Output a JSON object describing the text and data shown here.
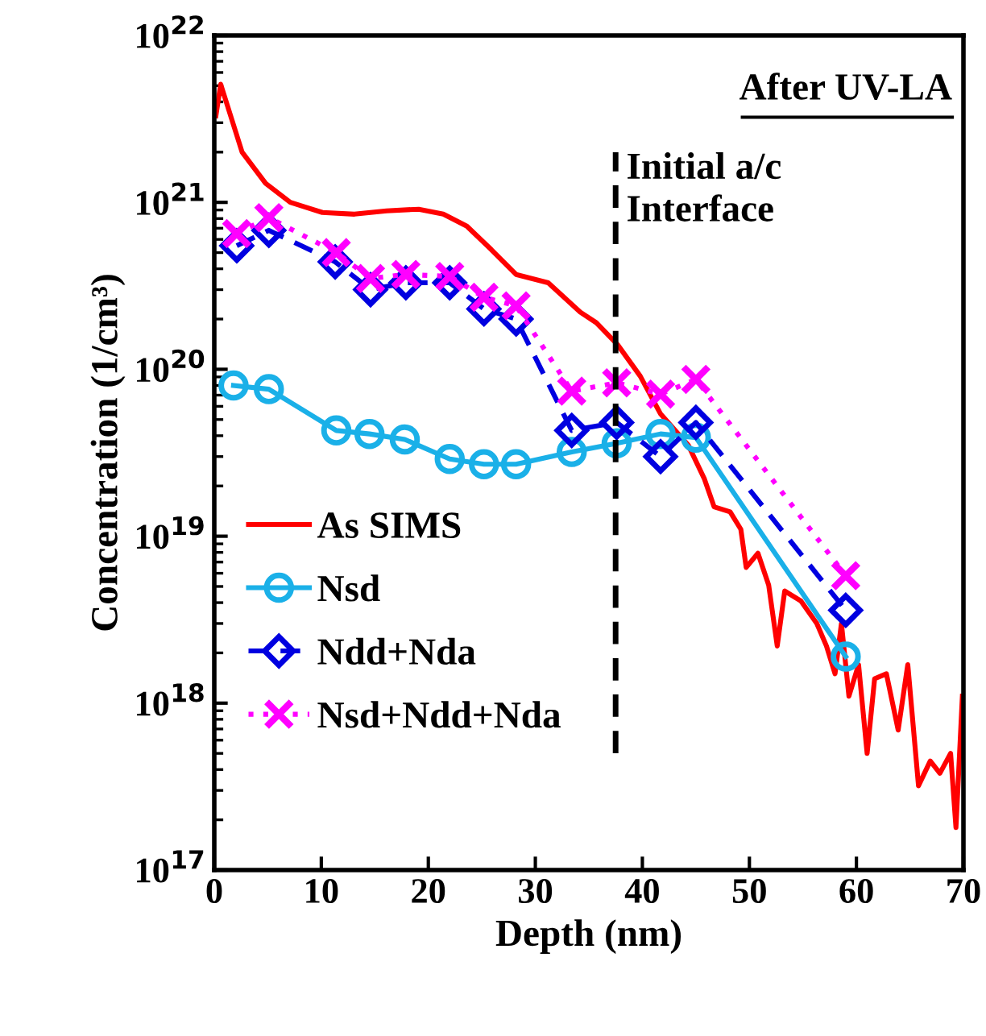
{
  "chart_data": {
    "type": "line",
    "xlabel": "Depth (nm)",
    "ylabel": "Concentration (1/cm³)",
    "log": "y",
    "grid": false,
    "legend": "lower left",
    "xlim": [
      0,
      70
    ],
    "xticks": [
      0,
      10,
      20,
      30,
      40,
      50,
      60,
      70
    ],
    "ylim": [
      1e+17,
      1e+22
    ],
    "yticks": [
      {
        "value": 1e+17,
        "label": "10$^{17}$"
      },
      {
        "value": 1e+18,
        "label": "10$^{18}$"
      },
      {
        "value": 1e+19,
        "label": "10$^{19}$"
      },
      {
        "value": 1e+20,
        "label": "10$^{20}$"
      },
      {
        "value": 1e+21,
        "label": "10$^{21}$"
      },
      {
        "value": 1e+22,
        "label": "10$^{22}$"
      }
    ],
    "series": [
      {
        "name": "As SIMS",
        "color": "#ff0000",
        "marker": "none",
        "line_style": "solid",
        "x": [
          0.15,
          0.6,
          2.6,
          4.8,
          7.1,
          10.1,
          13.1,
          16.1,
          19.1,
          21.4,
          23.6,
          25.9,
          28.2,
          31.2,
          34.2,
          35.7,
          37.7,
          39.8,
          41.7,
          44.3,
          45.8,
          46.7,
          48.2,
          49.2,
          49.7,
          50.8,
          51.8,
          52.6,
          53.3,
          54.8,
          56.3,
          57.2,
          58.0,
          58.6,
          59.3,
          60.2,
          61.0,
          61.7,
          62.8,
          63.9,
          64.8,
          65.8,
          66.9,
          67.8,
          68.8,
          69.3,
          69.9
        ],
        "values": [
          3.3e+21,
          5.1e+21,
          2e+21,
          1.3e+21,
          1e+21,
          8.7e+20,
          8.5e+20,
          8.9e+20,
          9.1e+20,
          8.5e+20,
          7.2e+20,
          5.2e+20,
          3.7e+20,
          3.3e+20,
          2.2e+20,
          1.9e+20,
          1.4e+20,
          9.1e+19,
          5.4e+19,
          3.5e+19,
          2.2e+19,
          1.5e+19,
          1.4e+19,
          1.1e+19,
          6.5e+18,
          7.9e+18,
          5.1e+18,
          2.2e+18,
          4.7e+18,
          4.1e+18,
          3e+18,
          2.2e+18,
          1.5e+18,
          3e+18,
          1.1e+18,
          1.7e+18,
          5e+17,
          1.4e+18,
          1.5e+18,
          6.9e+17,
          1.7e+18,
          3.2e+17,
          4.5e+17,
          3.8e+17,
          5e+17,
          1.8e+17,
          1.1e+18
        ]
      },
      {
        "name": "Nsd",
        "color": "#1ab0e8",
        "marker": "circle",
        "line_style": "solid",
        "x": [
          1.8,
          5.1,
          11.4,
          14.5,
          17.8,
          22.0,
          25.2,
          28.2,
          33.4,
          37.6,
          41.7,
          45.0,
          59.0
        ],
        "values": [
          8e+19,
          7.6e+19,
          4.3e+19,
          4.1e+19,
          3.8e+19,
          2.9e+19,
          2.7e+19,
          2.7e+19,
          3.2e+19,
          3.6e+19,
          4.1e+19,
          3.9e+19,
          1.9e+18
        ]
      },
      {
        "name": "Ndd+Nda",
        "color": "#0000e0",
        "marker": "diamond",
        "line_style": "dashed",
        "x": [
          2.1,
          5.1,
          11.3,
          14.6,
          17.9,
          22.0,
          25.2,
          28.2,
          33.4,
          37.6,
          41.7,
          45.0,
          59.0
        ],
        "values": [
          5.5e+20,
          6.8e+20,
          4.4e+20,
          3e+20,
          3.3e+20,
          3.3e+20,
          2.3e+20,
          2e+20,
          4.3e+19,
          4.8e+19,
          3e+19,
          4.8e+19,
          3.6e+18
        ]
      },
      {
        "name": "Nsd+Ndd+Nda",
        "color": "#ff00ff",
        "marker": "cross",
        "line_style": "dotted",
        "x": [
          2.1,
          5.1,
          11.4,
          14.6,
          17.9,
          22.0,
          25.2,
          28.2,
          33.4,
          37.6,
          41.7,
          45.0,
          59.0
        ],
        "values": [
          6.5e+20,
          8.1e+20,
          5e+20,
          3.5e+20,
          3.7e+20,
          3.6e+20,
          2.7e+20,
          2.4e+20,
          7.4e+19,
          8.3e+19,
          7.1e+19,
          8.7e+19,
          5.8e+18
        ]
      }
    ],
    "ref_lines": [
      {
        "axis": "x",
        "value": 37.5,
        "label": "Initial a/c\nInterface",
        "color": "#000000",
        "line_style": "dashed"
      }
    ],
    "annotations": [
      "After UV-LA"
    ]
  }
}
